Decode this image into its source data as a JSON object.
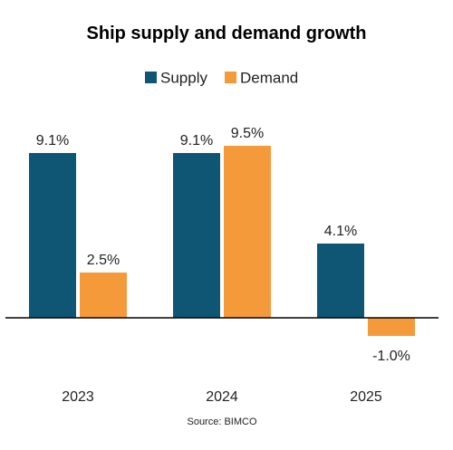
{
  "chart_data": {
    "type": "bar",
    "title": "Ship supply and demand growth",
    "categories": [
      "2023",
      "2024",
      "2025"
    ],
    "series": [
      {
        "name": "Supply",
        "color": "#0f5675",
        "values": [
          9.1,
          9.1,
          4.1
        ],
        "labels": [
          "9.1%",
          "9.1%",
          "4.1%"
        ]
      },
      {
        "name": "Demand",
        "color": "#f59a3a",
        "values": [
          2.5,
          9.5,
          -1.0
        ],
        "labels": [
          "2.5%",
          "9.5%",
          "-1.0%"
        ]
      }
    ],
    "xlabel": "",
    "ylabel": "",
    "ylim": [
      -2.5,
      10
    ],
    "value_unit": "%",
    "grid": false,
    "legend": "top-center",
    "source": "Source: BIMCO"
  }
}
